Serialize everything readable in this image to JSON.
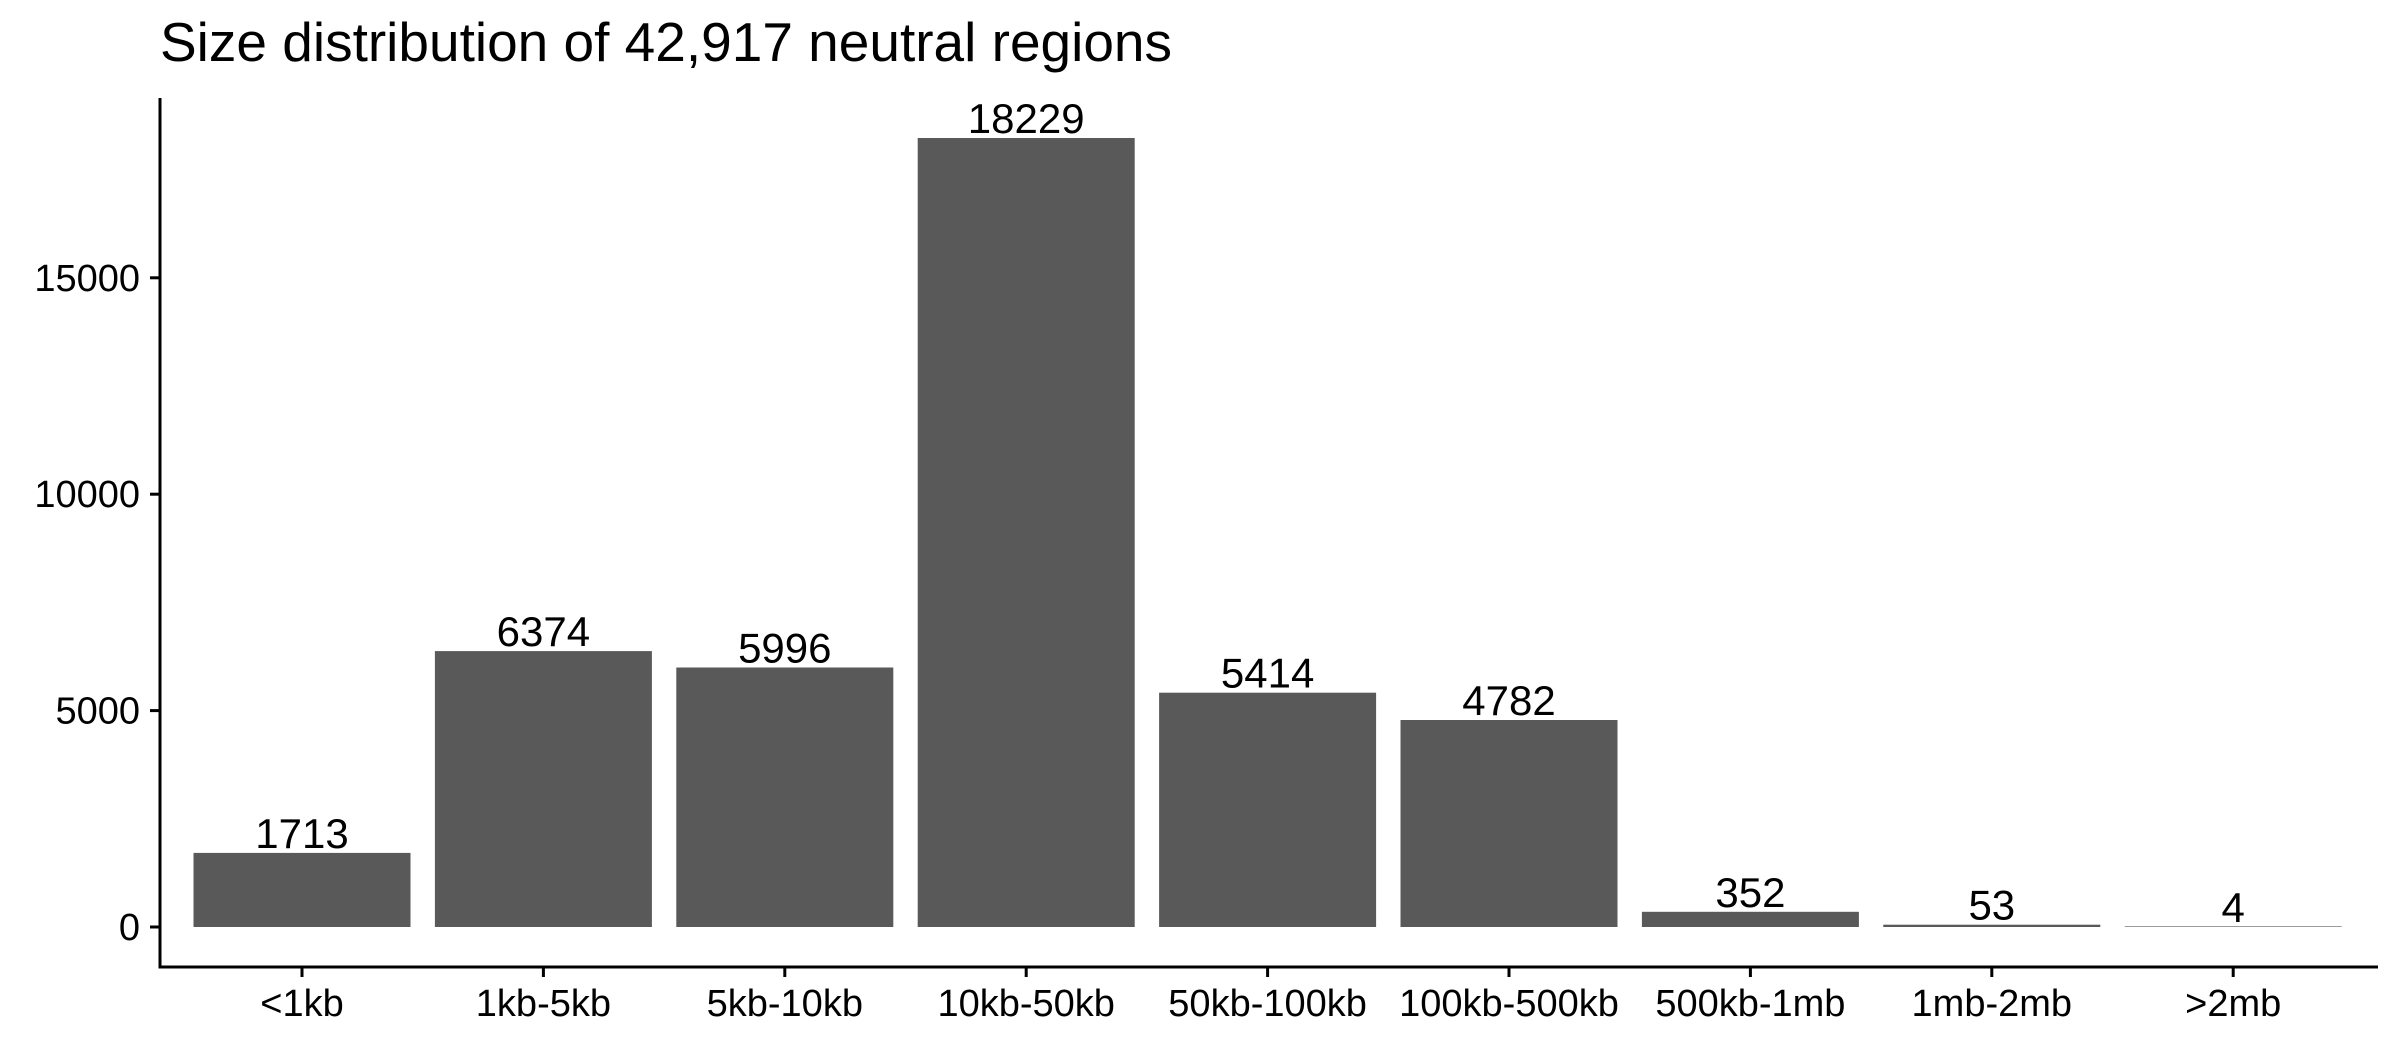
{
  "chart_data": {
    "type": "bar",
    "title": "Size distribution of 42,917 neutral regions",
    "xlabel": "",
    "ylabel": "",
    "categories": [
      "<1kb",
      "1kb-5kb",
      "5kb-10kb",
      "10kb-50kb",
      "50kb-100kb",
      "100kb-500kb",
      "500kb-1mb",
      "1mb-2mb",
      ">2mb"
    ],
    "values": [
      1713,
      6374,
      5996,
      18229,
      5414,
      4782,
      352,
      53,
      4
    ],
    "data_labels": [
      "1713",
      "6374",
      "5996",
      "18229",
      "5414",
      "4782",
      "352",
      "53",
      "4"
    ],
    "yticks": [
      0,
      5000,
      10000,
      15000
    ],
    "ytick_labels": [
      "0",
      "5000",
      "10000",
      "15000"
    ],
    "ylim": [
      0,
      18229
    ],
    "grid": false,
    "legend": "none",
    "colors": {
      "bar": "#595959",
      "axis": "#000000",
      "text": "#000000"
    }
  }
}
